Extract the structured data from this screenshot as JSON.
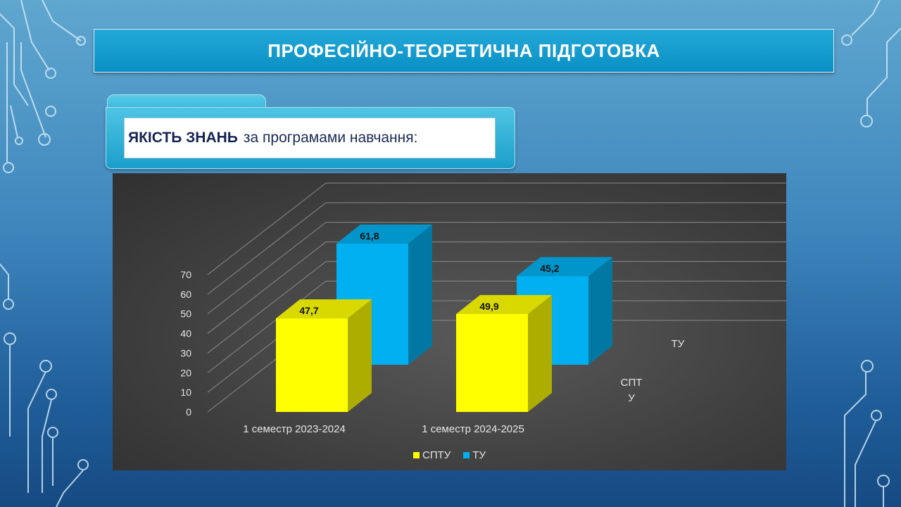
{
  "slide": {
    "title": "ПРОФЕСІЙНО-ТЕОРЕТИЧНА ПІДГОТОВКА",
    "subtitle_bold": "ЯКІСТЬ ЗНАНЬ",
    "subtitle_rest": "за програмами навчання:"
  },
  "colors": {
    "sptu": "#ffff00",
    "tu": "#00b0f0"
  },
  "chart_data": {
    "type": "bar",
    "style": "3d-clustered-depth",
    "categories": [
      "1 семестр 2023-2024",
      "1 семестр 2024-2025"
    ],
    "series": [
      {
        "name": "СПТУ",
        "depth_label": [
          "СПТ",
          "У"
        ],
        "values": [
          47.7,
          49.9
        ],
        "labels": [
          "47,7",
          "49,9"
        ]
      },
      {
        "name": "ТУ",
        "depth_label": [
          "ТУ"
        ],
        "values": [
          61.8,
          45.2
        ],
        "labels": [
          "61,8",
          "45,2"
        ]
      }
    ],
    "yticks": [
      "0",
      "10",
      "20",
      "30",
      "40",
      "50",
      "60",
      "70"
    ],
    "ylim": [
      0,
      70
    ],
    "grid": true,
    "legend": "bottom"
  }
}
